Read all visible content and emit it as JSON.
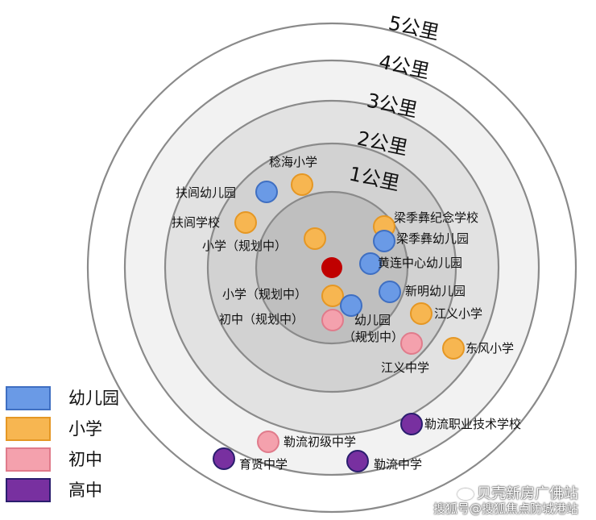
{
  "colors": {
    "kindergarten": {
      "fill": "#6a9ae6",
      "stroke": "#3f6fc2"
    },
    "primary": {
      "fill": "#f7b651",
      "stroke": "#e59724"
    },
    "junior": {
      "fill": "#f4a1ad",
      "stroke": "#e07b8b"
    },
    "senior": {
      "fill": "#7830a0",
      "stroke": "#2a1e6e"
    },
    "center": "#c00000"
  },
  "rings": [
    {
      "label": "5公里",
      "fill": "#ffffff"
    },
    {
      "label": "4公里",
      "fill": "#f2f2f2"
    },
    {
      "label": "3公里",
      "fill": "#e2e2e2"
    },
    {
      "label": "2公里",
      "fill": "#d2d2d2"
    },
    {
      "label": "1公里",
      "fill": "#bfbfbf"
    }
  ],
  "legend": [
    {
      "type": "kindergarten",
      "label": "幼儿园"
    },
    {
      "type": "primary",
      "label": "小学"
    },
    {
      "type": "junior",
      "label": "初中"
    },
    {
      "type": "senior",
      "label": "高中"
    }
  ],
  "schools": [
    {
      "name": "稔海小学",
      "type": "primary"
    },
    {
      "name": "扶闾幼儿园",
      "type": "kindergarten"
    },
    {
      "name": "扶闾学校",
      "type": "primary"
    },
    {
      "name": "小学（规划中）",
      "type": "primary"
    },
    {
      "name": "梁季彝纪念学校",
      "type": "primary"
    },
    {
      "name": "梁季彝幼儿园",
      "type": "kindergarten"
    },
    {
      "name": "黄连中心幼儿园",
      "type": "kindergarten"
    },
    {
      "name": "新明幼儿园",
      "type": "kindergarten"
    },
    {
      "name": "小学（规划中）",
      "type": "primary"
    },
    {
      "name": "幼儿园",
      "name2": "（规划中）",
      "type": "kindergarten"
    },
    {
      "name": "初中（规划中）",
      "type": "junior"
    },
    {
      "name": "江义小学",
      "type": "primary"
    },
    {
      "name": "江义中学",
      "type": "junior"
    },
    {
      "name": "东风小学",
      "type": "primary"
    },
    {
      "name": "勒流职业技术学校",
      "type": "senior"
    },
    {
      "name": "勒流初级中学",
      "type": "junior"
    },
    {
      "name": "育贤中学",
      "type": "senior"
    },
    {
      "name": "勒流中学",
      "type": "senior"
    }
  ],
  "watermark": {
    "line1": "贝壳新房广佛站",
    "line2": "搜狐号@搜狐焦点防城港站"
  }
}
